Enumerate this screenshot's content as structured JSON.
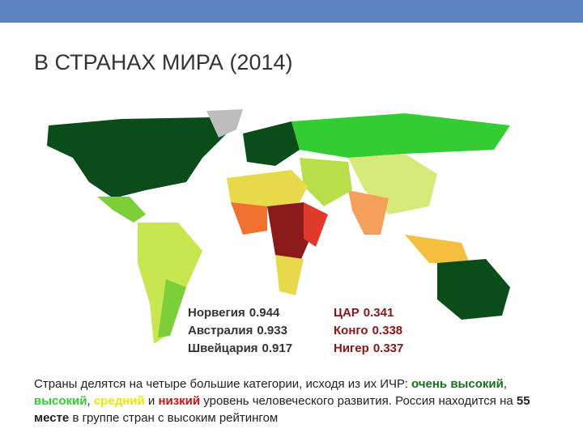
{
  "header": {
    "title": "В СТРАНАХ МИРА (2014)"
  },
  "top_countries": [
    {
      "country": "Норвегия",
      "hdi": 0.944
    },
    {
      "country": "Австралия",
      "hdi": 0.933
    },
    {
      "country": "Швейцария",
      "hdi": 0.917
    }
  ],
  "bottom_countries": [
    {
      "country": "ЦАР",
      "hdi": 0.341
    },
    {
      "country": "Конго",
      "hdi": 0.338
    },
    {
      "country": "Нигер",
      "hdi": 0.337
    }
  ],
  "paragraph": [
    {
      "text": "Страны делятся на четыре большие категории, исходя из их ИЧР: ",
      "style": "plain"
    },
    {
      "text": "очень высокий",
      "style": "very-high"
    },
    {
      "text": ", ",
      "style": "plain"
    },
    {
      "text": "высокий",
      "style": "high"
    },
    {
      "text": ", ",
      "style": "plain"
    },
    {
      "text": "средний",
      "style": "medium"
    },
    {
      "text": " и ",
      "style": "plain"
    },
    {
      "text": "низкий",
      "style": "low"
    },
    {
      "text": " уровень человеческого развития. Россия находится на ",
      "style": "plain"
    },
    {
      "text": "55 месте",
      "style": "bold"
    },
    {
      "text": " в группе стран с высоким рейтингом",
      "style": "plain"
    }
  ]
}
